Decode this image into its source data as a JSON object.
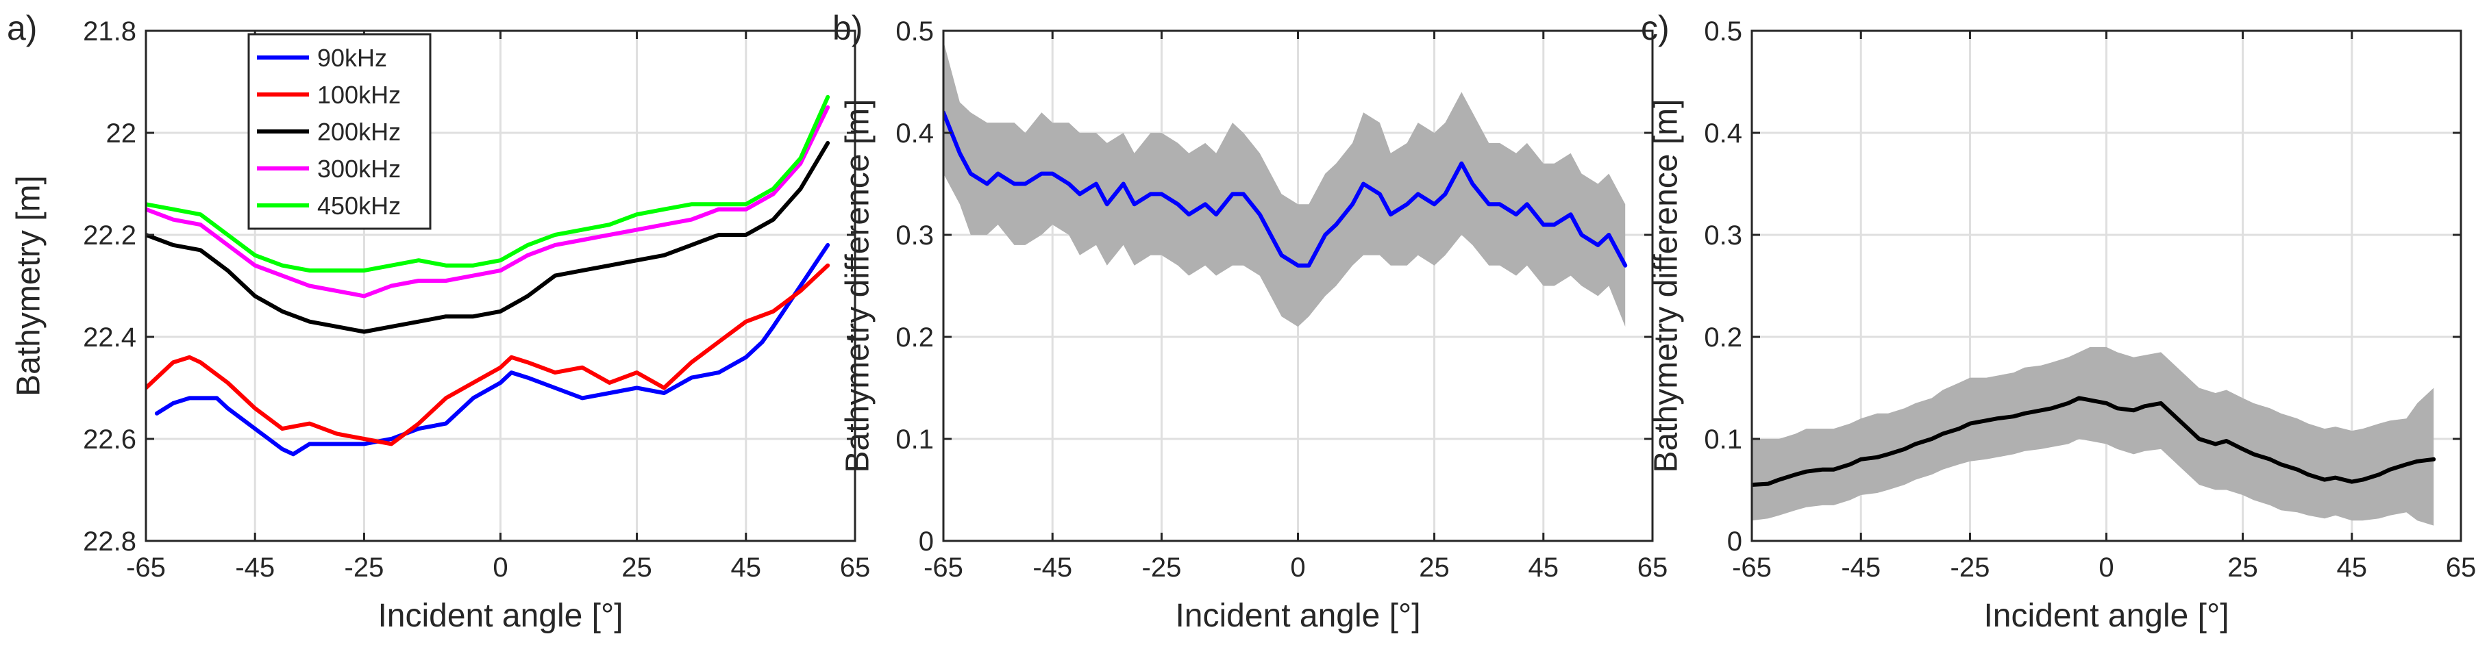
{
  "chart_data": [
    {
      "type": "line",
      "panel_label": "a)",
      "xlabel": "Incident angle [°]",
      "ylabel": "Bathymetry [m]",
      "xlim": [
        -65,
        65
      ],
      "ylim": [
        21.8,
        22.8
      ],
      "y_reversed": true,
      "xticks": [
        -65,
        -45,
        -25,
        0,
        25,
        45,
        65
      ],
      "yticks": [
        21.8,
        22,
        22.2,
        22.4,
        22.6,
        22.8
      ],
      "ytick_labels": [
        "21.8",
        "22",
        "22.2",
        "22.4",
        "22.6",
        "22.8"
      ],
      "grid": true,
      "legend_position": "top-left",
      "series": [
        {
          "name": "90kHz",
          "color": "#0000ff",
          "x": [
            -63,
            -60,
            -57,
            -55,
            -52,
            -50,
            -45,
            -40,
            -38,
            -35,
            -30,
            -25,
            -20,
            -15,
            -10,
            -5,
            0,
            2,
            5,
            10,
            15,
            20,
            25,
            30,
            35,
            40,
            45,
            48,
            50,
            55,
            60
          ],
          "y": [
            22.55,
            22.53,
            22.52,
            22.52,
            22.52,
            22.54,
            22.58,
            22.62,
            22.63,
            22.61,
            22.61,
            22.61,
            22.6,
            22.58,
            22.57,
            22.52,
            22.49,
            22.47,
            22.48,
            22.5,
            22.52,
            22.51,
            22.5,
            22.51,
            22.48,
            22.47,
            22.44,
            22.41,
            22.38,
            22.3,
            22.22
          ]
        },
        {
          "name": "100kHz",
          "color": "#ff0000",
          "x": [
            -65,
            -62,
            -60,
            -57,
            -55,
            -50,
            -45,
            -40,
            -35,
            -30,
            -25,
            -20,
            -15,
            -10,
            -5,
            0,
            2,
            5,
            10,
            15,
            20,
            25,
            30,
            35,
            40,
            45,
            50,
            55,
            60
          ],
          "y": [
            22.5,
            22.47,
            22.45,
            22.44,
            22.45,
            22.49,
            22.54,
            22.58,
            22.57,
            22.59,
            22.6,
            22.61,
            22.57,
            22.52,
            22.49,
            22.46,
            22.44,
            22.45,
            22.47,
            22.46,
            22.49,
            22.47,
            22.5,
            22.45,
            22.41,
            22.37,
            22.35,
            22.31,
            22.26
          ]
        },
        {
          "name": "200kHz",
          "color": "#000000",
          "x": [
            -65,
            -60,
            -55,
            -50,
            -45,
            -40,
            -35,
            -30,
            -25,
            -20,
            -15,
            -10,
            -5,
            0,
            5,
            10,
            15,
            20,
            25,
            30,
            35,
            40,
            45,
            50,
            55,
            60
          ],
          "y": [
            22.2,
            22.22,
            22.23,
            22.27,
            22.32,
            22.35,
            22.37,
            22.38,
            22.39,
            22.38,
            22.37,
            22.36,
            22.36,
            22.35,
            22.32,
            22.28,
            22.27,
            22.26,
            22.25,
            22.24,
            22.22,
            22.2,
            22.2,
            22.17,
            22.11,
            22.02
          ]
        },
        {
          "name": "300kHz",
          "color": "#ff00ff",
          "x": [
            -65,
            -60,
            -55,
            -50,
            -45,
            -40,
            -35,
            -30,
            -25,
            -20,
            -15,
            -10,
            -5,
            0,
            5,
            10,
            15,
            20,
            25,
            30,
            35,
            40,
            45,
            50,
            55,
            60
          ],
          "y": [
            22.15,
            22.17,
            22.18,
            22.22,
            22.26,
            22.28,
            22.3,
            22.31,
            22.32,
            22.3,
            22.29,
            22.29,
            22.28,
            22.27,
            22.24,
            22.22,
            22.21,
            22.2,
            22.19,
            22.18,
            22.17,
            22.15,
            22.15,
            22.12,
            22.06,
            21.95
          ]
        },
        {
          "name": "450kHz",
          "color": "#00ff00",
          "x": [
            -65,
            -60,
            -55,
            -50,
            -45,
            -40,
            -35,
            -30,
            -25,
            -20,
            -15,
            -10,
            -5,
            0,
            5,
            10,
            15,
            20,
            25,
            30,
            35,
            40,
            45,
            50,
            55,
            60
          ],
          "y": [
            22.14,
            22.15,
            22.16,
            22.2,
            22.24,
            22.26,
            22.27,
            22.27,
            22.27,
            22.26,
            22.25,
            22.26,
            22.26,
            22.25,
            22.22,
            22.2,
            22.19,
            22.18,
            22.16,
            22.15,
            22.14,
            22.14,
            22.14,
            22.11,
            22.05,
            21.93
          ]
        }
      ]
    },
    {
      "type": "line",
      "panel_label": "b)",
      "xlabel": "Incident angle [°]",
      "ylabel": "Bathymetry difference [m]",
      "xlim": [
        -65,
        65
      ],
      "ylim": [
        0,
        0.5
      ],
      "xticks": [
        -65,
        -45,
        -25,
        0,
        25,
        45,
        65
      ],
      "yticks": [
        0,
        0.1,
        0.2,
        0.3,
        0.4,
        0.5
      ],
      "ytick_labels": [
        "0",
        "0.1",
        "0.2",
        "0.3",
        "0.4",
        "0.5"
      ],
      "grid": true,
      "series": [
        {
          "color": "#0000ff",
          "band_color": "#b0b0b0",
          "x": [
            -65,
            -62,
            -60,
            -57,
            -55,
            -52,
            -50,
            -47,
            -45,
            -42,
            -40,
            -37,
            -35,
            -32,
            -30,
            -27,
            -25,
            -22,
            -20,
            -17,
            -15,
            -12,
            -10,
            -7,
            -5,
            -3,
            0,
            2,
            5,
            7,
            10,
            12,
            15,
            17,
            20,
            22,
            25,
            27,
            30,
            32,
            35,
            37,
            40,
            42,
            45,
            47,
            50,
            52,
            55,
            57,
            60
          ],
          "y": [
            0.42,
            0.38,
            0.36,
            0.35,
            0.36,
            0.35,
            0.35,
            0.36,
            0.36,
            0.35,
            0.34,
            0.35,
            0.33,
            0.35,
            0.33,
            0.34,
            0.34,
            0.33,
            0.32,
            0.33,
            0.32,
            0.34,
            0.34,
            0.32,
            0.3,
            0.28,
            0.27,
            0.27,
            0.3,
            0.31,
            0.33,
            0.35,
            0.34,
            0.32,
            0.33,
            0.34,
            0.33,
            0.34,
            0.37,
            0.35,
            0.33,
            0.33,
            0.32,
            0.33,
            0.31,
            0.31,
            0.32,
            0.3,
            0.29,
            0.3,
            0.27
          ],
          "lower": [
            0.36,
            0.33,
            0.3,
            0.3,
            0.31,
            0.29,
            0.29,
            0.3,
            0.31,
            0.3,
            0.28,
            0.29,
            0.27,
            0.29,
            0.27,
            0.28,
            0.28,
            0.27,
            0.26,
            0.27,
            0.26,
            0.27,
            0.27,
            0.26,
            0.24,
            0.22,
            0.21,
            0.22,
            0.24,
            0.25,
            0.27,
            0.28,
            0.28,
            0.27,
            0.27,
            0.28,
            0.27,
            0.28,
            0.3,
            0.29,
            0.27,
            0.27,
            0.26,
            0.27,
            0.25,
            0.25,
            0.26,
            0.25,
            0.24,
            0.25,
            0.21
          ],
          "upper": [
            0.49,
            0.43,
            0.42,
            0.41,
            0.41,
            0.41,
            0.4,
            0.42,
            0.41,
            0.41,
            0.4,
            0.4,
            0.39,
            0.4,
            0.38,
            0.4,
            0.4,
            0.39,
            0.38,
            0.39,
            0.38,
            0.41,
            0.4,
            0.38,
            0.36,
            0.34,
            0.33,
            0.33,
            0.36,
            0.37,
            0.39,
            0.42,
            0.41,
            0.38,
            0.39,
            0.41,
            0.4,
            0.41,
            0.44,
            0.42,
            0.39,
            0.39,
            0.38,
            0.39,
            0.37,
            0.37,
            0.38,
            0.36,
            0.35,
            0.36,
            0.33
          ]
        }
      ]
    },
    {
      "type": "line",
      "panel_label": "c)",
      "xlabel": "Incident angle [°]",
      "ylabel": "Bathymetry difference [m]",
      "xlim": [
        -65,
        65
      ],
      "ylim": [
        0,
        0.5
      ],
      "xticks": [
        -65,
        -45,
        -25,
        0,
        25,
        45,
        65
      ],
      "yticks": [
        0,
        0.1,
        0.2,
        0.3,
        0.4,
        0.5
      ],
      "ytick_labels": [
        "0",
        "0.1",
        "0.2",
        "0.3",
        "0.4",
        "0.5"
      ],
      "grid": true,
      "series": [
        {
          "color": "#000000",
          "band_color": "#b0b0b0",
          "x": [
            -65,
            -62,
            -60,
            -57,
            -55,
            -52,
            -50,
            -47,
            -45,
            -42,
            -40,
            -37,
            -35,
            -32,
            -30,
            -27,
            -25,
            -22,
            -20,
            -17,
            -15,
            -12,
            -10,
            -7,
            -5,
            -3,
            0,
            2,
            5,
            7,
            10,
            12,
            15,
            17,
            20,
            22,
            25,
            27,
            30,
            32,
            35,
            37,
            40,
            42,
            45,
            47,
            50,
            52,
            55,
            57,
            60
          ],
          "y": [
            0.055,
            0.056,
            0.06,
            0.065,
            0.068,
            0.07,
            0.07,
            0.075,
            0.08,
            0.082,
            0.085,
            0.09,
            0.095,
            0.1,
            0.105,
            0.11,
            0.115,
            0.118,
            0.12,
            0.122,
            0.125,
            0.128,
            0.13,
            0.135,
            0.14,
            0.138,
            0.135,
            0.13,
            0.128,
            0.132,
            0.135,
            0.125,
            0.11,
            0.1,
            0.095,
            0.098,
            0.09,
            0.085,
            0.08,
            0.075,
            0.07,
            0.065,
            0.06,
            0.062,
            0.058,
            0.06,
            0.065,
            0.07,
            0.075,
            0.078,
            0.08
          ],
          "lower": [
            0.02,
            0.022,
            0.025,
            0.03,
            0.033,
            0.035,
            0.035,
            0.04,
            0.045,
            0.047,
            0.05,
            0.055,
            0.06,
            0.065,
            0.07,
            0.075,
            0.078,
            0.08,
            0.082,
            0.085,
            0.088,
            0.09,
            0.092,
            0.095,
            0.1,
            0.098,
            0.095,
            0.09,
            0.085,
            0.088,
            0.09,
            0.08,
            0.065,
            0.055,
            0.05,
            0.05,
            0.045,
            0.04,
            0.035,
            0.03,
            0.028,
            0.025,
            0.022,
            0.025,
            0.02,
            0.02,
            0.022,
            0.025,
            0.028,
            0.02,
            0.015
          ],
          "upper": [
            0.1,
            0.1,
            0.1,
            0.105,
            0.11,
            0.11,
            0.11,
            0.115,
            0.12,
            0.125,
            0.125,
            0.13,
            0.135,
            0.14,
            0.148,
            0.155,
            0.16,
            0.16,
            0.162,
            0.165,
            0.17,
            0.172,
            0.175,
            0.18,
            0.185,
            0.19,
            0.19,
            0.185,
            0.18,
            0.182,
            0.185,
            0.175,
            0.16,
            0.15,
            0.145,
            0.148,
            0.14,
            0.135,
            0.13,
            0.125,
            0.12,
            0.115,
            0.11,
            0.112,
            0.108,
            0.11,
            0.115,
            0.118,
            0.12,
            0.135,
            0.15
          ]
        }
      ]
    }
  ]
}
